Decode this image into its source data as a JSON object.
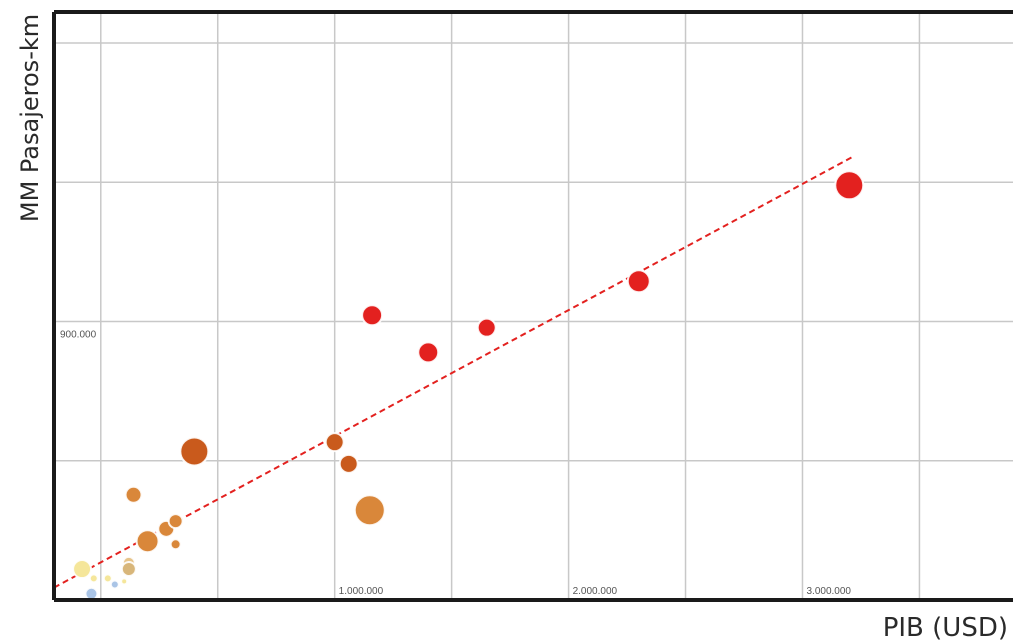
{
  "chart_data": {
    "type": "scatter",
    "title": "",
    "xlabel": "PIB (USD)",
    "ylabel": "MM Pasajeros-km",
    "xlim": [
      -200000,
      3900000
    ],
    "ylim": [
      0,
      1900000
    ],
    "x_ticks": [
      -500000,
      0,
      500000,
      1000000,
      1500000,
      2000000,
      2500000,
      3000000,
      3500000,
      4000000
    ],
    "x_tick_labels": {
      "1000000": "1.000.000",
      "2000000": "2.000.000",
      "3000000": "3.000.000"
    },
    "y_ticks": [
      450000,
      900000,
      1350000,
      1800000
    ],
    "y_tick_labels": {
      "900000": "900.000"
    },
    "grid": true,
    "legend": false,
    "points": [
      {
        "x": 3200000,
        "y": 1340000,
        "size": 14,
        "color": "#e3211f"
      },
      {
        "x": 2300000,
        "y": 1030000,
        "size": 11,
        "color": "#e3211f"
      },
      {
        "x": 1160000,
        "y": 920000,
        "size": 10,
        "color": "#e3211f"
      },
      {
        "x": 1650000,
        "y": 880000,
        "size": 9,
        "color": "#e3211f"
      },
      {
        "x": 1400000,
        "y": 800000,
        "size": 10,
        "color": "#e3211f"
      },
      {
        "x": 1000000,
        "y": 510000,
        "size": 9,
        "color": "#c95a1c"
      },
      {
        "x": 1060000,
        "y": 440000,
        "size": 9,
        "color": "#c95a1c"
      },
      {
        "x": 400000,
        "y": 480000,
        "size": 14,
        "color": "#c95a1c"
      },
      {
        "x": 1150000,
        "y": 290000,
        "size": 15,
        "color": "#d9873a"
      },
      {
        "x": 140000,
        "y": 340000,
        "size": 8,
        "color": "#d9873a"
      },
      {
        "x": 280000,
        "y": 230000,
        "size": 8,
        "color": "#d9873a"
      },
      {
        "x": 320000,
        "y": 255000,
        "size": 7,
        "color": "#d9873a"
      },
      {
        "x": 200000,
        "y": 190000,
        "size": 11,
        "color": "#d9873a"
      },
      {
        "x": 320000,
        "y": 180000,
        "size": 5,
        "color": "#d9873a"
      },
      {
        "x": 120000,
        "y": 120000,
        "size": 6,
        "color": "#e6c48a"
      },
      {
        "x": 120000,
        "y": 100000,
        "size": 7,
        "color": "#d8b67a"
      },
      {
        "x": -80000,
        "y": 100000,
        "size": 9,
        "color": "#f5e69a"
      },
      {
        "x": -30000,
        "y": 70000,
        "size": 4,
        "color": "#f5e69a"
      },
      {
        "x": 30000,
        "y": 70000,
        "size": 4,
        "color": "#f5e69a"
      },
      {
        "x": 100000,
        "y": 60000,
        "size": 3,
        "color": "#f5e69a"
      },
      {
        "x": 60000,
        "y": 50000,
        "size": 4,
        "color": "#a9c4e6"
      },
      {
        "x": -40000,
        "y": 20000,
        "size": 6,
        "color": "#a9c4e6"
      }
    ],
    "trendline": {
      "style": "dashed",
      "color": "#e3211f",
      "points": [
        [
          -200000,
          40000
        ],
        [
          3210000,
          1430000
        ]
      ]
    }
  }
}
